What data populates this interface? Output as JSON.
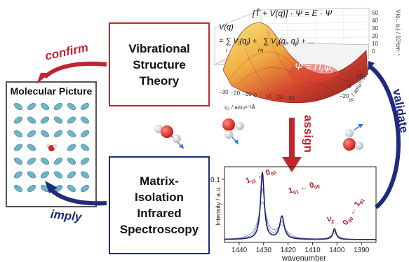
{
  "vst_box": {
    "lines": [
      "Vibrational",
      "Structure",
      "Theory"
    ]
  },
  "miis_box": {
    "lines": [
      "Matrix-",
      "Isolation",
      "Infrared",
      "Spectroscopy"
    ]
  },
  "molecular_picture": {
    "title": "Molecular Picture"
  },
  "arrows": {
    "confirm": "confirm",
    "imply": "imply",
    "assign": "assign",
    "validate": "validate"
  },
  "surface": {
    "hamiltonian": "[T̂ + V(q)] · Ψ = E · Ψ",
    "potential_lhs": "V(q)",
    "potential_rhs1": "= ∑ V",
    "potential_rhs1_sub": "i",
    "potential_rhs1_args": "(q",
    "potential_rhs1_args_sub": "i",
    "potential_rhs1_close": ") +",
    "potential_sum_sub1": "i",
    "potential_rhs2": "∑ V",
    "potential_rhs2_sub": "ij",
    "potential_rhs2_args": "(q",
    "potential_rhs2_args_sub1": "i",
    "potential_rhs2_mid": ", q",
    "potential_rhs2_args_sub2": "j",
    "potential_rhs2_close": ") + ...",
    "potential_sum_sub2": "i<j",
    "wavefunction": "Ψ = Π",
    "wavefunction_sub": "i",
    "wavefunction_psi": "ψ",
    "wavefunction_psi_sub": "i",
    "axis_q2_label": "q₂ / amu¹ᐟ²Å",
    "axis_q1_label": "q₁ / amu¹ᐟ²Å",
    "axis_v_label": "V(q₁, q₂) / 10³cm⁻¹",
    "q2_ticks": [
      "−30",
      "−20",
      "−10",
      "0",
      "10",
      "20",
      "30"
    ],
    "q1_ticks": [
      "−20",
      "0",
      "20"
    ],
    "v_ticks": [
      "0",
      "10",
      "20",
      "30",
      "40",
      "50"
    ]
  },
  "spectrum": {
    "ylabel": "Intensity / a.u.",
    "xlabel": "wavenumber",
    "y_tick": "0.1",
    "x_ticks": [
      "1440",
      "1430",
      "1420",
      "1410",
      "1400",
      "1390"
    ],
    "x_tick_values": [
      1440,
      1430,
      1420,
      1410,
      1400,
      1390
    ],
    "xlim": [
      1446,
      1384
    ],
    "peaks": [
      {
        "center": 1430.5,
        "height": 1.0,
        "width": 0.9
      },
      {
        "center": 1422.5,
        "height": 0.34,
        "width": 1.1
      },
      {
        "center": 1401.0,
        "height": 0.16,
        "width": 0.8
      }
    ],
    "labels": {
      "l1_main": "1",
      "l1_sub": "11",
      "l1_arrow": " ← 0",
      "l1_sub2": "00",
      "l2_main": "1",
      "l2_sub": "01",
      "l2_arrow": " ← 0",
      "l2_sub2": "00",
      "l3_main": "ν",
      "l3_sub": "2",
      "l4_main": "0",
      "l4_sub": "00",
      "l4_arrow": " ← 1",
      "l4_sub2": "01"
    },
    "colors": {
      "main": "#1a1f6e",
      "light": "#7d86c4",
      "label": "#b01e23"
    }
  },
  "colors": {
    "red": "#c0272d",
    "blue": "#1f2a7c"
  }
}
